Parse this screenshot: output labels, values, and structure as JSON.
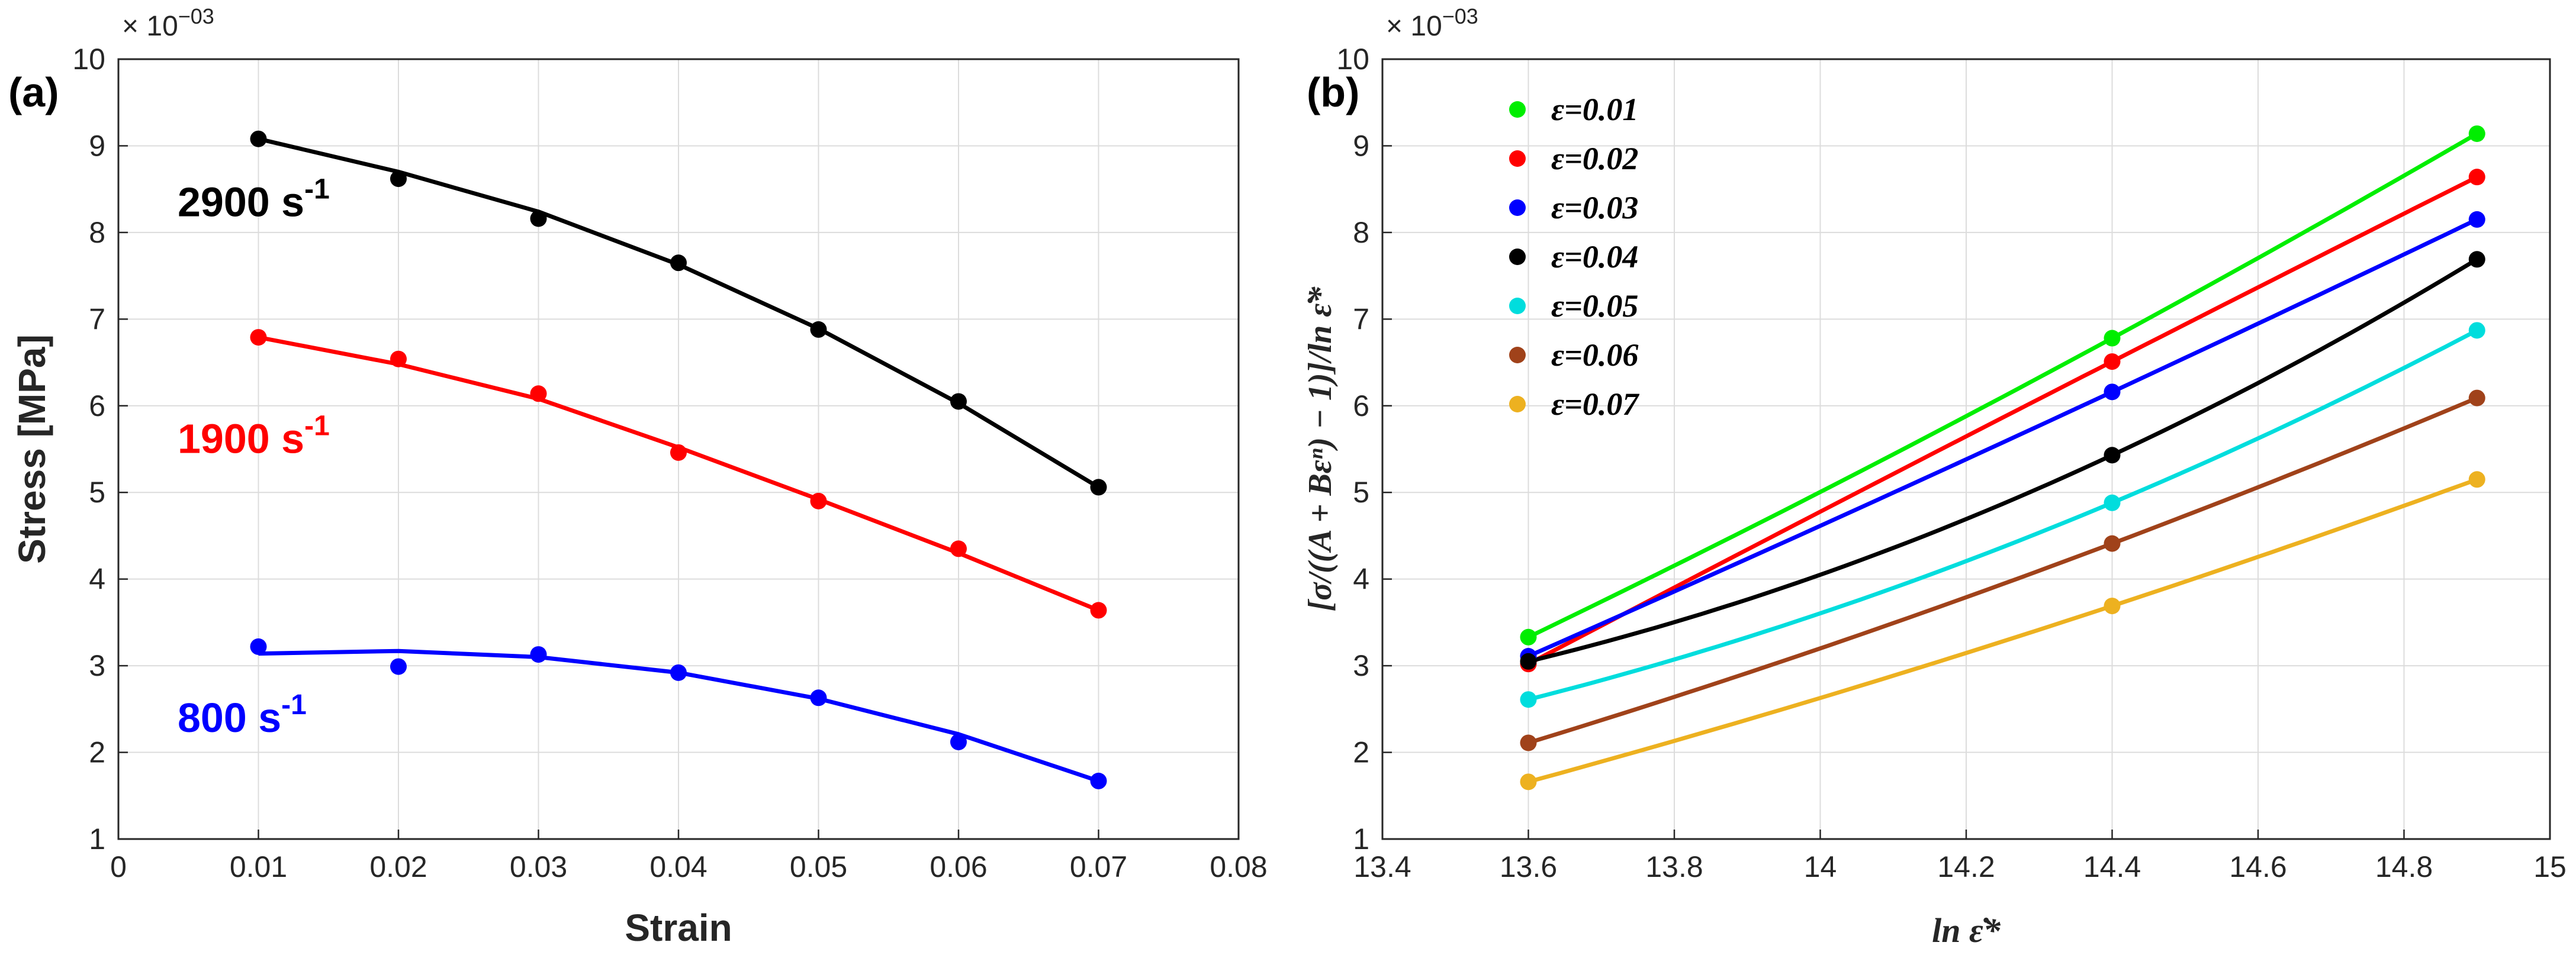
{
  "chart_data": [
    {
      "type": "scatter",
      "panel_label": "(a)",
      "exponent_label": "× 10",
      "exponent_power": "−03",
      "xlabel": "Strain",
      "ylabel": "Stress [MPa]",
      "xlim": [
        0,
        0.08
      ],
      "ylim": [
        1,
        10
      ],
      "xticks": [
        "0",
        "0.01",
        "0.02",
        "0.03",
        "0.04",
        "0.05",
        "0.06",
        "0.07",
        "0.08"
      ],
      "yticks": [
        "1",
        "2",
        "3",
        "4",
        "5",
        "6",
        "7",
        "8",
        "9",
        "10"
      ],
      "grid": true,
      "series": [
        {
          "name": "2900 s",
          "superscript": "-1",
          "color": "#000000",
          "x": [
            0.01,
            0.02,
            0.03,
            0.04,
            0.05,
            0.06,
            0.07
          ],
          "y": [
            9.08,
            8.62,
            8.16,
            7.65,
            6.88,
            6.05,
            5.06
          ],
          "fit": [
            9.08,
            8.7,
            8.24,
            7.63,
            6.89,
            6.03,
            5.06
          ]
        },
        {
          "name": "1900 s",
          "superscript": "-1",
          "color": "#ff0000",
          "x": [
            0.01,
            0.02,
            0.03,
            0.04,
            0.05,
            0.06,
            0.07
          ],
          "y": [
            6.79,
            6.54,
            6.14,
            5.46,
            4.9,
            4.35,
            3.64
          ],
          "fit": [
            6.79,
            6.48,
            6.08,
            5.52,
            4.92,
            4.3,
            3.64
          ]
        },
        {
          "name": "800 s",
          "superscript": "-1",
          "color": "#0000ff",
          "x": [
            0.01,
            0.02,
            0.03,
            0.04,
            0.05,
            0.06,
            0.07
          ],
          "y": [
            3.22,
            2.99,
            3.13,
            2.92,
            2.63,
            2.12,
            1.67
          ],
          "fit": [
            3.14,
            3.17,
            3.1,
            2.92,
            2.62,
            2.21,
            1.67
          ]
        }
      ]
    },
    {
      "type": "scatter",
      "panel_label": "(b)",
      "exponent_label": "× 10",
      "exponent_power": "−03",
      "xlabel": "ln ε̇*",
      "ylabel": "[σ/((A + Bεⁿ) − 1)]/ln ε̇*",
      "xlim": [
        13.4,
        15
      ],
      "ylim": [
        1,
        10
      ],
      "xticks": [
        "13.4",
        "13.6",
        "13.8",
        "14",
        "14.2",
        "14.4",
        "14.6",
        "14.8",
        "15"
      ],
      "yticks": [
        "1",
        "2",
        "3",
        "4",
        "5",
        "6",
        "7",
        "8",
        "9",
        "10"
      ],
      "grid": true,
      "legend_position": "top-left",
      "series": [
        {
          "name": "ε=0.01",
          "color": "#00ee00",
          "x": [
            13.6,
            14.4,
            14.9
          ],
          "y": [
            3.33,
            6.78,
            9.14
          ]
        },
        {
          "name": "ε=0.02",
          "color": "#ff0000",
          "x": [
            13.6,
            14.4,
            14.9
          ],
          "y": [
            3.02,
            6.51,
            8.64
          ]
        },
        {
          "name": "ε=0.03",
          "color": "#0000ff",
          "x": [
            13.6,
            14.4,
            14.9
          ],
          "y": [
            3.11,
            6.16,
            8.15
          ]
        },
        {
          "name": "ε=0.04",
          "color": "#000000",
          "x": [
            13.6,
            14.4,
            14.9
          ],
          "y": [
            3.05,
            5.43,
            7.69
          ]
        },
        {
          "name": "ε=0.05",
          "color": "#00dddd",
          "x": [
            13.6,
            14.4,
            14.9
          ],
          "y": [
            2.61,
            4.88,
            6.87
          ]
        },
        {
          "name": "ε=0.06",
          "color": "#a0421a",
          "x": [
            13.6,
            14.4,
            14.9
          ],
          "y": [
            2.11,
            4.41,
            6.09
          ]
        },
        {
          "name": "ε=0.07",
          "color": "#edb120",
          "x": [
            13.6,
            14.4,
            14.9
          ],
          "y": [
            1.66,
            3.69,
            5.15
          ]
        }
      ]
    }
  ]
}
